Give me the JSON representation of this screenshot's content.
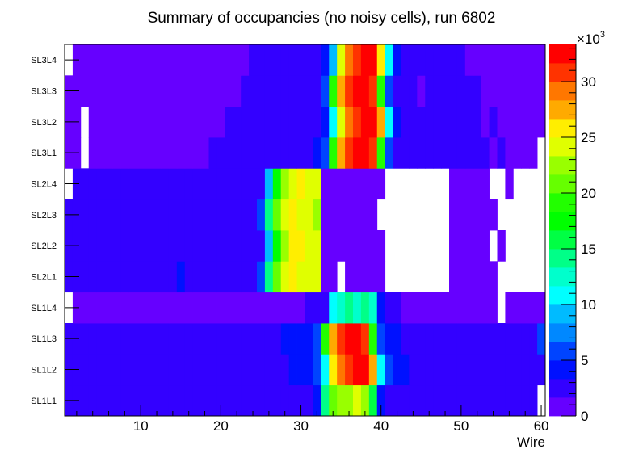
{
  "chart_data": {
    "type": "heatmap",
    "title": "Summary of occupancies (no noisy cells), run 6802",
    "xlabel": "Wire",
    "ylabel": "",
    "xlim": [
      0.5,
      60.5
    ],
    "x_ticks": [
      "10",
      "20",
      "30",
      "40",
      "50",
      "60"
    ],
    "y_categories": [
      "SL1L1",
      "SL1L2",
      "SL1L3",
      "SL1L4",
      "SL2L1",
      "SL2L2",
      "SL2L3",
      "SL2L4",
      "SL3L1",
      "SL3L2",
      "SL3L3",
      "SL3L4"
    ],
    "z_units_multiplier": "×10",
    "z_units_exponent": "3",
    "zlim": [
      0,
      33.333
    ],
    "z_ticks": [
      "0",
      "5",
      "10",
      "15",
      "20",
      "25",
      "30"
    ],
    "palette": [
      "#6600ff",
      "#3300ff",
      "#0011ff",
      "#0044ff",
      "#0088ff",
      "#00bbff",
      "#00ffff",
      "#00ffcc",
      "#00ff88",
      "#00ff44",
      "#00ff00",
      "#22ff00",
      "#66ff00",
      "#99ff00",
      "#e0ff00",
      "#ffee00",
      "#ffaa00",
      "#ff7700",
      "#ff3300",
      "#ff0000"
    ],
    "z": [
      [
        2.5,
        2.5,
        2.5,
        2.5,
        2.5,
        2.5,
        2.5,
        2.5,
        2.5,
        2.5,
        2.5,
        2.5,
        2.5,
        2.5,
        2.5,
        2.5,
        2.5,
        2.5,
        2.5,
        2.5,
        2.5,
        2.5,
        2.5,
        2.5,
        2.5,
        2.5,
        2.5,
        2.5,
        2.5,
        2.5,
        2.5,
        4.2,
        14.2,
        20.8,
        22.5,
        22.5,
        24.2,
        22.5,
        15.8,
        4.2,
        2.5,
        2.5,
        2.5,
        2.5,
        2.5,
        2.5,
        2.5,
        2.5,
        2.5,
        2.5,
        2.5,
        2.5,
        2.5,
        2.5,
        2.5,
        2.5,
        2.5,
        2.5,
        2.5,
        0
      ],
      [
        2.5,
        2.5,
        2.5,
        2.5,
        2.5,
        2.5,
        2.5,
        2.5,
        2.5,
        2.5,
        2.5,
        2.5,
        2.5,
        2.5,
        2.5,
        2.5,
        2.5,
        2.5,
        2.5,
        2.5,
        2.5,
        2.5,
        2.5,
        2.5,
        2.5,
        2.5,
        2.5,
        2.5,
        4.2,
        4.2,
        4.2,
        5.8,
        10.8,
        25.8,
        29.2,
        30.8,
        32.5,
        32.5,
        27.5,
        10.8,
        5.8,
        4.2,
        4.2,
        2.5,
        2.5,
        2.5,
        2.5,
        2.5,
        2.5,
        2.5,
        2.5,
        2.5,
        2.5,
        2.5,
        2.5,
        2.5,
        2.5,
        2.5,
        2.5,
        2.5
      ],
      [
        2.5,
        2.5,
        2.5,
        2.5,
        2.5,
        2.5,
        2.5,
        2.5,
        2.5,
        2.5,
        2.5,
        2.5,
        2.5,
        2.5,
        2.5,
        2.5,
        2.5,
        2.5,
        2.5,
        2.5,
        2.5,
        2.5,
        2.5,
        2.5,
        2.5,
        2.5,
        2.5,
        4.2,
        4.2,
        4.2,
        4.2,
        5.8,
        19.2,
        27.5,
        30.8,
        32.5,
        32.5,
        30.8,
        19.2,
        5.8,
        4.2,
        4.2,
        2.5,
        2.5,
        2.5,
        2.5,
        2.5,
        2.5,
        2.5,
        2.5,
        2.5,
        2.5,
        2.5,
        2.5,
        2.5,
        2.5,
        2.5,
        2.5,
        2.5,
        5.8
      ],
      [
        0,
        0.8,
        0.8,
        0.8,
        0.8,
        0.8,
        0.8,
        0.8,
        0.8,
        0.8,
        0.8,
        0.8,
        0.8,
        0.8,
        0.8,
        0.8,
        0.8,
        0.8,
        0.8,
        0.8,
        0.8,
        0.8,
        0.8,
        0.8,
        0.8,
        0.8,
        0.8,
        0.8,
        0.8,
        0.8,
        2.5,
        2.5,
        2.5,
        10.8,
        12.5,
        14.2,
        12.5,
        14.2,
        12.5,
        4.2,
        2.5,
        2.5,
        0.8,
        0.8,
        0.8,
        0.8,
        0.8,
        0.8,
        0.8,
        0.8,
        0.8,
        0.8,
        0.8,
        0.8,
        0,
        0.8,
        0.8,
        0.8,
        0.8,
        0.8
      ],
      [
        2.5,
        2.5,
        2.5,
        2.5,
        2.5,
        2.5,
        2.5,
        2.5,
        2.5,
        2.5,
        2.5,
        2.5,
        2.5,
        2.5,
        4.2,
        2.5,
        2.5,
        2.5,
        2.5,
        2.5,
        2.5,
        2.5,
        2.5,
        2.5,
        5.8,
        14.2,
        20.8,
        24.2,
        25.8,
        24.2,
        24.2,
        24.2,
        0.8,
        0.8,
        0,
        0.8,
        0.8,
        0.8,
        0.8,
        0.8,
        0,
        0,
        0,
        0,
        0,
        0,
        0,
        0,
        0.8,
        0.8,
        0.8,
        0.8,
        0.8,
        0.8,
        0,
        0,
        0,
        0,
        0,
        0
      ],
      [
        2.5,
        2.5,
        2.5,
        2.5,
        2.5,
        2.5,
        2.5,
        2.5,
        2.5,
        2.5,
        2.5,
        2.5,
        2.5,
        2.5,
        2.5,
        2.5,
        2.5,
        2.5,
        2.5,
        2.5,
        2.5,
        2.5,
        2.5,
        2.5,
        2.5,
        9.2,
        17.5,
        22.5,
        25.8,
        25.8,
        24.2,
        24.2,
        0.8,
        0.8,
        0.8,
        0.8,
        0.8,
        0.8,
        0.8,
        0.8,
        0,
        0,
        0,
        0,
        0,
        0,
        0,
        0,
        0.8,
        0.8,
        0.8,
        0.8,
        0.8,
        0,
        0.8,
        0,
        0,
        0,
        0,
        0
      ],
      [
        2.5,
        2.5,
        2.5,
        2.5,
        2.5,
        2.5,
        2.5,
        2.5,
        2.5,
        2.5,
        2.5,
        2.5,
        2.5,
        2.5,
        2.5,
        2.5,
        2.5,
        2.5,
        2.5,
        2.5,
        2.5,
        2.5,
        2.5,
        2.5,
        5.8,
        14.2,
        20.8,
        24.2,
        25.8,
        24.2,
        24.2,
        22.5,
        0.8,
        0.8,
        0.8,
        0.8,
        0.8,
        0.8,
        0.8,
        0,
        0,
        0,
        0,
        0,
        0,
        0,
        0,
        0,
        0.8,
        0.8,
        0.8,
        0.8,
        0.8,
        0.8,
        0,
        0,
        0,
        0,
        0,
        0
      ],
      [
        0,
        2.5,
        2.5,
        2.5,
        2.5,
        2.5,
        2.5,
        2.5,
        2.5,
        2.5,
        2.5,
        2.5,
        2.5,
        2.5,
        2.5,
        2.5,
        2.5,
        2.5,
        2.5,
        2.5,
        2.5,
        2.5,
        2.5,
        2.5,
        2.5,
        9.2,
        17.5,
        22.5,
        24.2,
        25.8,
        24.2,
        24.2,
        0.8,
        0.8,
        0.8,
        0.8,
        0.8,
        0.8,
        0.8,
        0.8,
        0,
        0,
        0,
        0,
        0,
        0,
        0,
        0,
        0.8,
        0.8,
        0.8,
        0.8,
        0.8,
        0,
        0,
        0.8,
        0,
        0,
        0,
        0
      ],
      [
        0.8,
        0.8,
        0,
        0.8,
        0.8,
        0.8,
        0.8,
        0.8,
        0.8,
        0.8,
        0.8,
        0.8,
        0.8,
        0.8,
        0.8,
        0.8,
        0.8,
        0.8,
        2.5,
        2.5,
        2.5,
        2.5,
        2.5,
        2.5,
        2.5,
        2.5,
        2.5,
        2.5,
        2.5,
        2.5,
        2.5,
        4.2,
        5.8,
        19.2,
        27.5,
        30.8,
        32.5,
        32.5,
        30.8,
        19.2,
        5.8,
        2.5,
        2.5,
        2.5,
        2.5,
        2.5,
        2.5,
        2.5,
        2.5,
        2.5,
        2.5,
        2.5,
        2.5,
        0.8,
        2.5,
        0.8,
        0.8,
        0.8,
        0.8,
        0
      ],
      [
        0.8,
        0.8,
        0,
        0.8,
        0.8,
        0.8,
        0.8,
        0.8,
        0.8,
        0.8,
        0.8,
        0.8,
        0.8,
        0.8,
        0.8,
        0.8,
        0.8,
        0.8,
        0.8,
        0.8,
        2.5,
        2.5,
        2.5,
        2.5,
        2.5,
        2.5,
        2.5,
        2.5,
        2.5,
        2.5,
        2.5,
        2.5,
        4.2,
        10.8,
        24.2,
        29.2,
        30.8,
        32.5,
        32.5,
        27.5,
        10.8,
        4.2,
        2.5,
        2.5,
        2.5,
        2.5,
        2.5,
        2.5,
        2.5,
        2.5,
        2.5,
        2.5,
        0.8,
        2.5,
        0.8,
        0.8,
        0.8,
        0.8,
        0.8,
        0.8
      ],
      [
        0.8,
        0.8,
        0.8,
        0.8,
        0.8,
        0.8,
        0.8,
        0.8,
        0.8,
        0.8,
        0.8,
        0.8,
        0.8,
        0.8,
        0.8,
        0.8,
        0.8,
        0.8,
        0.8,
        0.8,
        0.8,
        0.8,
        2.5,
        2.5,
        2.5,
        2.5,
        2.5,
        2.5,
        2.5,
        2.5,
        2.5,
        2.5,
        5.8,
        19.2,
        27.5,
        30.8,
        32.5,
        32.5,
        30.8,
        19.2,
        5.8,
        2.5,
        2.5,
        2.5,
        0.8,
        2.5,
        2.5,
        2.5,
        2.5,
        2.5,
        2.5,
        2.5,
        0.8,
        0.8,
        0.8,
        0.8,
        0.8,
        0.8,
        0.8,
        0.8
      ],
      [
        0,
        0.8,
        0.8,
        0.8,
        0.8,
        0.8,
        0.8,
        0.8,
        0.8,
        0.8,
        0.8,
        0.8,
        0.8,
        0.8,
        0.8,
        0.8,
        0.8,
        0.8,
        0.8,
        0.8,
        0.8,
        0.8,
        0.8,
        2.5,
        2.5,
        2.5,
        2.5,
        2.5,
        2.5,
        2.5,
        2.5,
        2.5,
        4.2,
        9.2,
        24.2,
        29.2,
        30.8,
        32.5,
        32.5,
        25.8,
        10.8,
        4.2,
        2.5,
        2.5,
        2.5,
        2.5,
        2.5,
        2.5,
        2.5,
        2.5,
        0.8,
        0.8,
        0.8,
        0.8,
        0.8,
        0.8,
        0.8,
        0.8,
        0.8,
        0.8
      ]
    ],
    "grid": false,
    "legend": "colorbar-right"
  }
}
